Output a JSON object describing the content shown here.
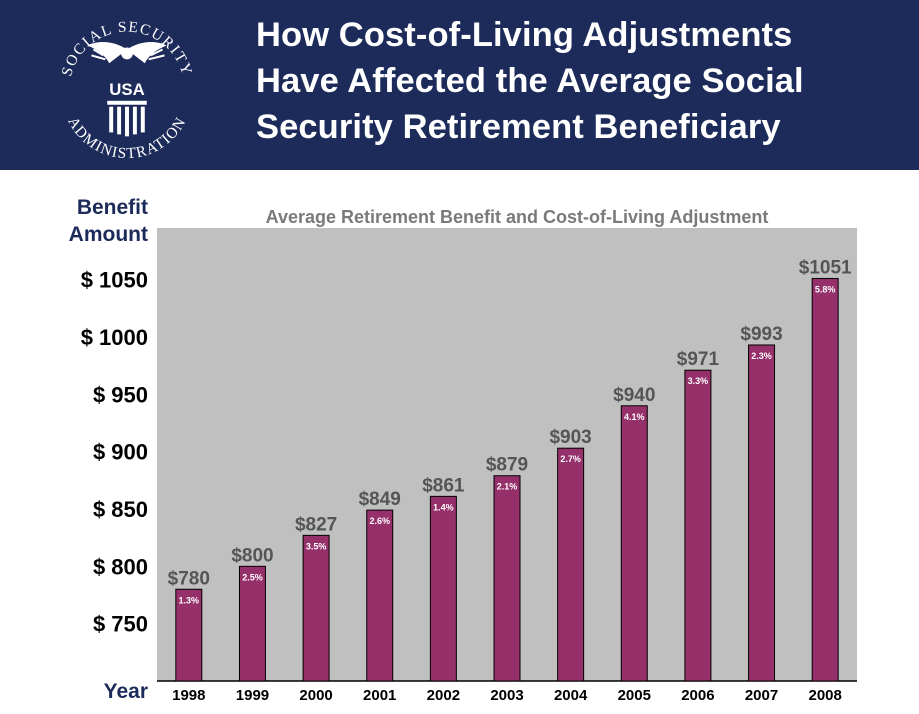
{
  "header": {
    "logo": {
      "ring_text_top": "SOCIAL SECURITY",
      "ring_text_bottom": "ADMINISTRATION",
      "center_text": "USA"
    },
    "title_lines": [
      "How Cost-of-Living Adjustments",
      "Have Affected the Average Social",
      "Security Retirement Beneficiary"
    ]
  },
  "axis": {
    "y_label_lines": [
      "Benefit",
      "Amount"
    ],
    "x_label": "Year"
  },
  "colors": {
    "header_bg": "#1d2b5a",
    "plot_bg": "#c0c0c0",
    "bar_fill": "#96306a",
    "value_label": "#555555",
    "subtitle": "#7a7a7a",
    "axis_text": "#000000"
  },
  "chart_data": {
    "type": "bar",
    "title": "Average Retirement Benefit and Cost-of-Living Adjustment",
    "categories": [
      "1998",
      "1999",
      "2000",
      "2001",
      "2002",
      "2003",
      "2004",
      "2005",
      "2006",
      "2007",
      "2008"
    ],
    "values": [
      780,
      800,
      827,
      849,
      861,
      879,
      903,
      940,
      971,
      993,
      1051
    ],
    "value_labels": [
      "$780",
      "$800",
      "$827",
      "$849",
      "$861",
      "$879",
      "$903",
      "$940",
      "$971",
      "$993",
      "$1051"
    ],
    "cola_labels": [
      "1.3%",
      "2.5%",
      "3.5%",
      "2.6%",
      "1.4%",
      "2.1%",
      "2.7%",
      "4.1%",
      "3.3%",
      "2.3%",
      "5.8%"
    ],
    "y_ticks": [
      750,
      800,
      850,
      900,
      950,
      1000,
      1050
    ],
    "y_tick_labels": [
      "$ 750",
      "$ 800",
      "$ 850",
      "$ 900",
      "$ 950",
      "$ 1000",
      "$ 1050"
    ],
    "ylim": [
      700,
      1095
    ],
    "grid": false
  }
}
